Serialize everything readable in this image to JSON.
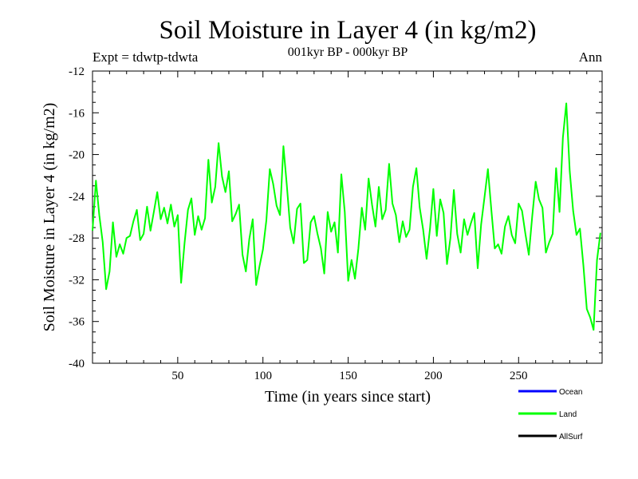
{
  "chart_data": {
    "type": "line",
    "title": "Soil Moisture in Layer 4 (in kg/m2)",
    "subtitle": "001kyr BP - 000kyr BP",
    "experiment": "Expt = tdwtp-tdwta",
    "period": "Ann",
    "xlabel": "Time (in years since start)",
    "ylabel": "Soil Moisture in Layer 4 (in kg/m2)",
    "xlim": [
      0,
      299
    ],
    "ylim": [
      -40,
      -12
    ],
    "xticks": [
      50,
      100,
      150,
      200,
      250
    ],
    "yticks": [
      -40,
      -36,
      -32,
      -28,
      -24,
      -20,
      -16,
      -12
    ],
    "ytick_labels": [
      "-40",
      "-36",
      "-32",
      "-28",
      "-24",
      "-20",
      "-16",
      "-12"
    ],
    "legend_position": "bottom-right",
    "series": [
      {
        "name": "Ocean",
        "color": "#0000ff",
        "x": [],
        "values": []
      },
      {
        "name": "Land",
        "color": "#00ff00",
        "x": [
          0,
          2,
          4,
          6,
          8,
          10,
          12,
          14,
          16,
          18,
          20,
          22,
          24,
          26,
          28,
          30,
          32,
          34,
          36,
          38,
          40,
          42,
          44,
          46,
          48,
          50,
          52,
          54,
          56,
          58,
          60,
          62,
          64,
          66,
          68,
          70,
          72,
          74,
          76,
          78,
          80,
          82,
          84,
          86,
          88,
          90,
          92,
          94,
          96,
          98,
          100,
          102,
          104,
          106,
          108,
          110,
          112,
          114,
          116,
          118,
          120,
          122,
          124,
          126,
          128,
          130,
          132,
          134,
          136,
          138,
          140,
          142,
          144,
          146,
          148,
          150,
          152,
          154,
          156,
          158,
          160,
          162,
          164,
          166,
          168,
          170,
          172,
          174,
          176,
          178,
          180,
          182,
          184,
          186,
          188,
          190,
          192,
          194,
          196,
          198,
          200,
          202,
          204,
          206,
          208,
          210,
          212,
          214,
          216,
          218,
          220,
          222,
          224,
          226,
          228,
          230,
          232,
          234,
          236,
          238,
          240,
          242,
          244,
          246,
          248,
          250,
          252,
          254,
          256,
          258,
          260,
          262,
          264,
          266,
          268,
          270,
          272,
          274,
          276,
          278,
          280,
          282,
          284,
          286,
          288,
          290,
          292,
          294,
          296,
          298
        ],
        "values": [
          -27.3,
          -22.5,
          -25.8,
          -28.4,
          -32.9,
          -31.2,
          -26.5,
          -29.8,
          -28.6,
          -29.5,
          -28.0,
          -27.8,
          -26.4,
          -25.3,
          -28.2,
          -27.6,
          -25.0,
          -27.3,
          -25.5,
          -23.6,
          -26.2,
          -25.1,
          -26.6,
          -24.8,
          -26.9,
          -25.8,
          -32.3,
          -28.5,
          -25.3,
          -24.2,
          -27.7,
          -25.9,
          -27.2,
          -26.1,
          -20.5,
          -24.6,
          -23.1,
          -18.9,
          -22.1,
          -23.6,
          -21.6,
          -26.4,
          -25.7,
          -24.8,
          -29.6,
          -31.2,
          -28.1,
          -26.2,
          -32.5,
          -30.7,
          -29.1,
          -26.3,
          -21.4,
          -22.8,
          -24.9,
          -25.8,
          -19.2,
          -22.9,
          -27.0,
          -28.5,
          -25.2,
          -24.7,
          -30.4,
          -30.1,
          -26.5,
          -25.9,
          -27.6,
          -29.0,
          -31.4,
          -25.5,
          -27.4,
          -26.5,
          -29.4,
          -21.9,
          -25.5,
          -32.1,
          -30.1,
          -31.9,
          -29.0,
          -25.1,
          -27.2,
          -22.3,
          -24.8,
          -26.9,
          -23.1,
          -26.2,
          -25.3,
          -20.9,
          -24.7,
          -25.8,
          -28.4,
          -26.4,
          -27.9,
          -27.2,
          -23.1,
          -21.3,
          -25.1,
          -27.2,
          -30.0,
          -27.1,
          -23.3,
          -27.8,
          -24.3,
          -25.6,
          -30.5,
          -28.0,
          -23.4,
          -27.6,
          -29.4,
          -26.2,
          -27.7,
          -26.6,
          -25.6,
          -30.9,
          -26.7,
          -24.1,
          -21.4,
          -25.3,
          -29.0,
          -28.6,
          -29.5,
          -26.9,
          -25.9,
          -27.7,
          -28.5,
          -24.7,
          -25.4,
          -27.6,
          -29.6,
          -25.9,
          -22.6,
          -24.3,
          -25.1,
          -29.4,
          -28.4,
          -27.6,
          -21.3,
          -25.5,
          -18.4,
          -15.1,
          -21.6,
          -25.4,
          -27.7,
          -27.1,
          -30.6,
          -34.8,
          -35.6,
          -36.8,
          -30.1,
          -27.5
        ]
      },
      {
        "name": "AllSurf",
        "color": "#000000",
        "x": [],
        "values": []
      }
    ]
  }
}
